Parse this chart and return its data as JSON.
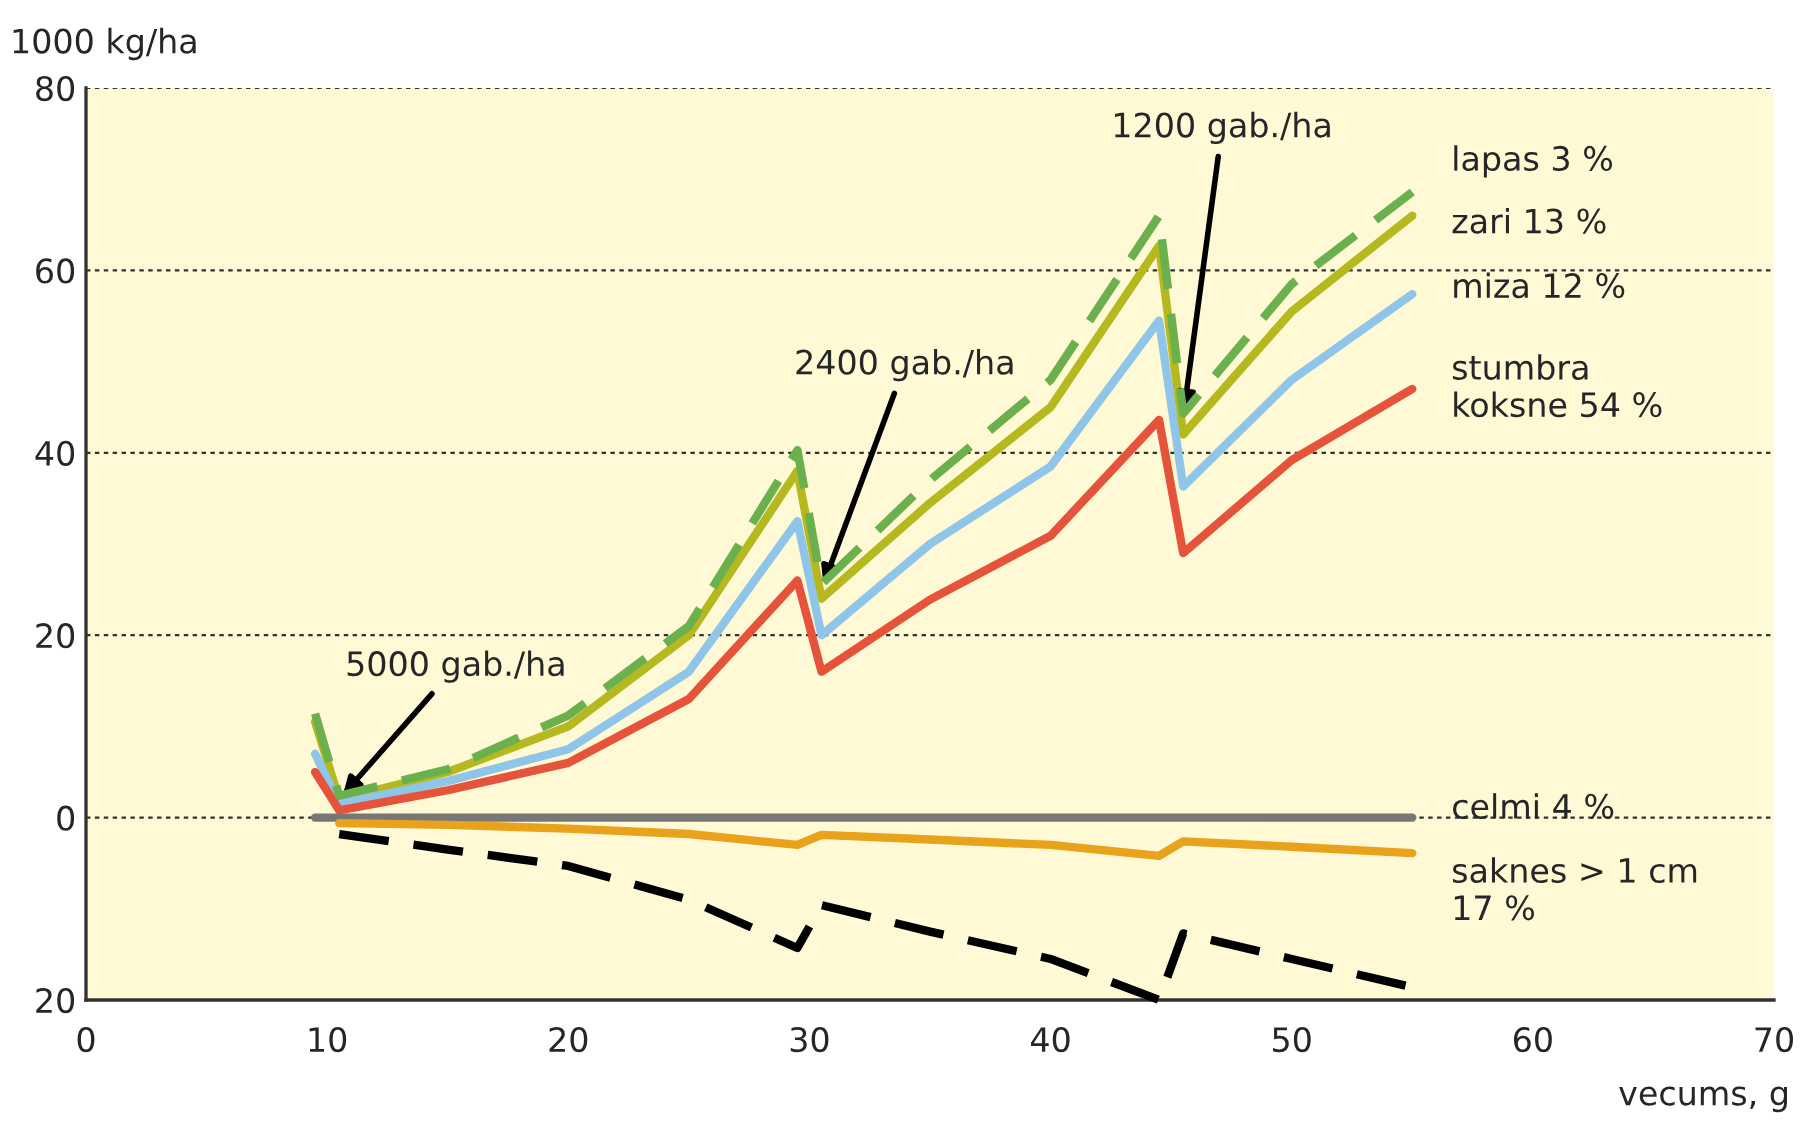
{
  "chart_data": {
    "type": "line",
    "ylabel": "1000 kg/ha",
    "xlabel": "vecums, g",
    "x": [
      9.5,
      10.5,
      15,
      20,
      25,
      29.5,
      30.5,
      35,
      40,
      44.5,
      45.5,
      50,
      55
    ],
    "series": [
      {
        "name": "lapas 3 %",
        "color": "#6ab04c",
        "line_style": "dashed",
        "values": [
          11.4,
          2.4,
          5.3,
          11.2,
          21,
          40.3,
          25.6,
          37,
          48,
          66,
          44.3,
          58.5,
          68.6
        ]
      },
      {
        "name": "zari 13 %",
        "color": "#b5b81f",
        "values": [
          10.5,
          2,
          5,
          10,
          20,
          38,
          24,
          34.5,
          45,
          62.7,
          42,
          55.5,
          66
        ]
      },
      {
        "name": "miza 12 %",
        "color": "#8ec5e8",
        "values": [
          7,
          1.5,
          4,
          7.5,
          16,
          32.5,
          20,
          30,
          38.5,
          54.5,
          36.3,
          48,
          57.4
        ]
      },
      {
        "name": "stumbra\nkoksne 54 %",
        "color": "#e5533b",
        "values": [
          5,
          0.8,
          3,
          6,
          13,
          26,
          16,
          23.9,
          30.9,
          43.6,
          29,
          39.2,
          47
        ]
      },
      {
        "name": "celmi 4 %",
        "color": "#777777",
        "values": [
          0,
          0,
          0,
          0,
          0,
          0,
          0,
          0,
          0,
          0,
          0,
          0,
          0
        ]
      },
      {
        "name": "saknes > 1 cm\n17 %",
        "color": "#e8a21c",
        "values": [
          null,
          -0.6,
          -0.8,
          -1.2,
          -1.8,
          -3,
          -1.9,
          -2.4,
          -3,
          -4.2,
          -2.6,
          -3.2,
          -3.9
        ]
      },
      {
        "color": "#000000",
        "line_style": "dashed",
        "values": [
          null,
          -1.8,
          -3.5,
          -5.3,
          -9,
          -14.3,
          -9.6,
          -12.5,
          -15.5,
          -20,
          -12.7,
          -15.5,
          -18.6
        ]
      }
    ],
    "xlim": [
      0,
      70
    ],
    "xticks": [
      0,
      10,
      20,
      30,
      40,
      50,
      60,
      70
    ],
    "ylim": [
      -20,
      80
    ],
    "yticks": [
      {
        "value": -20,
        "label": "20"
      },
      0,
      20,
      40,
      60,
      80
    ],
    "grid": "y",
    "annotations": [
      {
        "text": "5000 gab./ha",
        "x": 10.5,
        "y": 2
      },
      {
        "text": "2400 gab./ha",
        "x": 30.5,
        "y": 25
      },
      {
        "text": "1200 gab./ha",
        "x": 45.5,
        "y": 44
      }
    ]
  }
}
